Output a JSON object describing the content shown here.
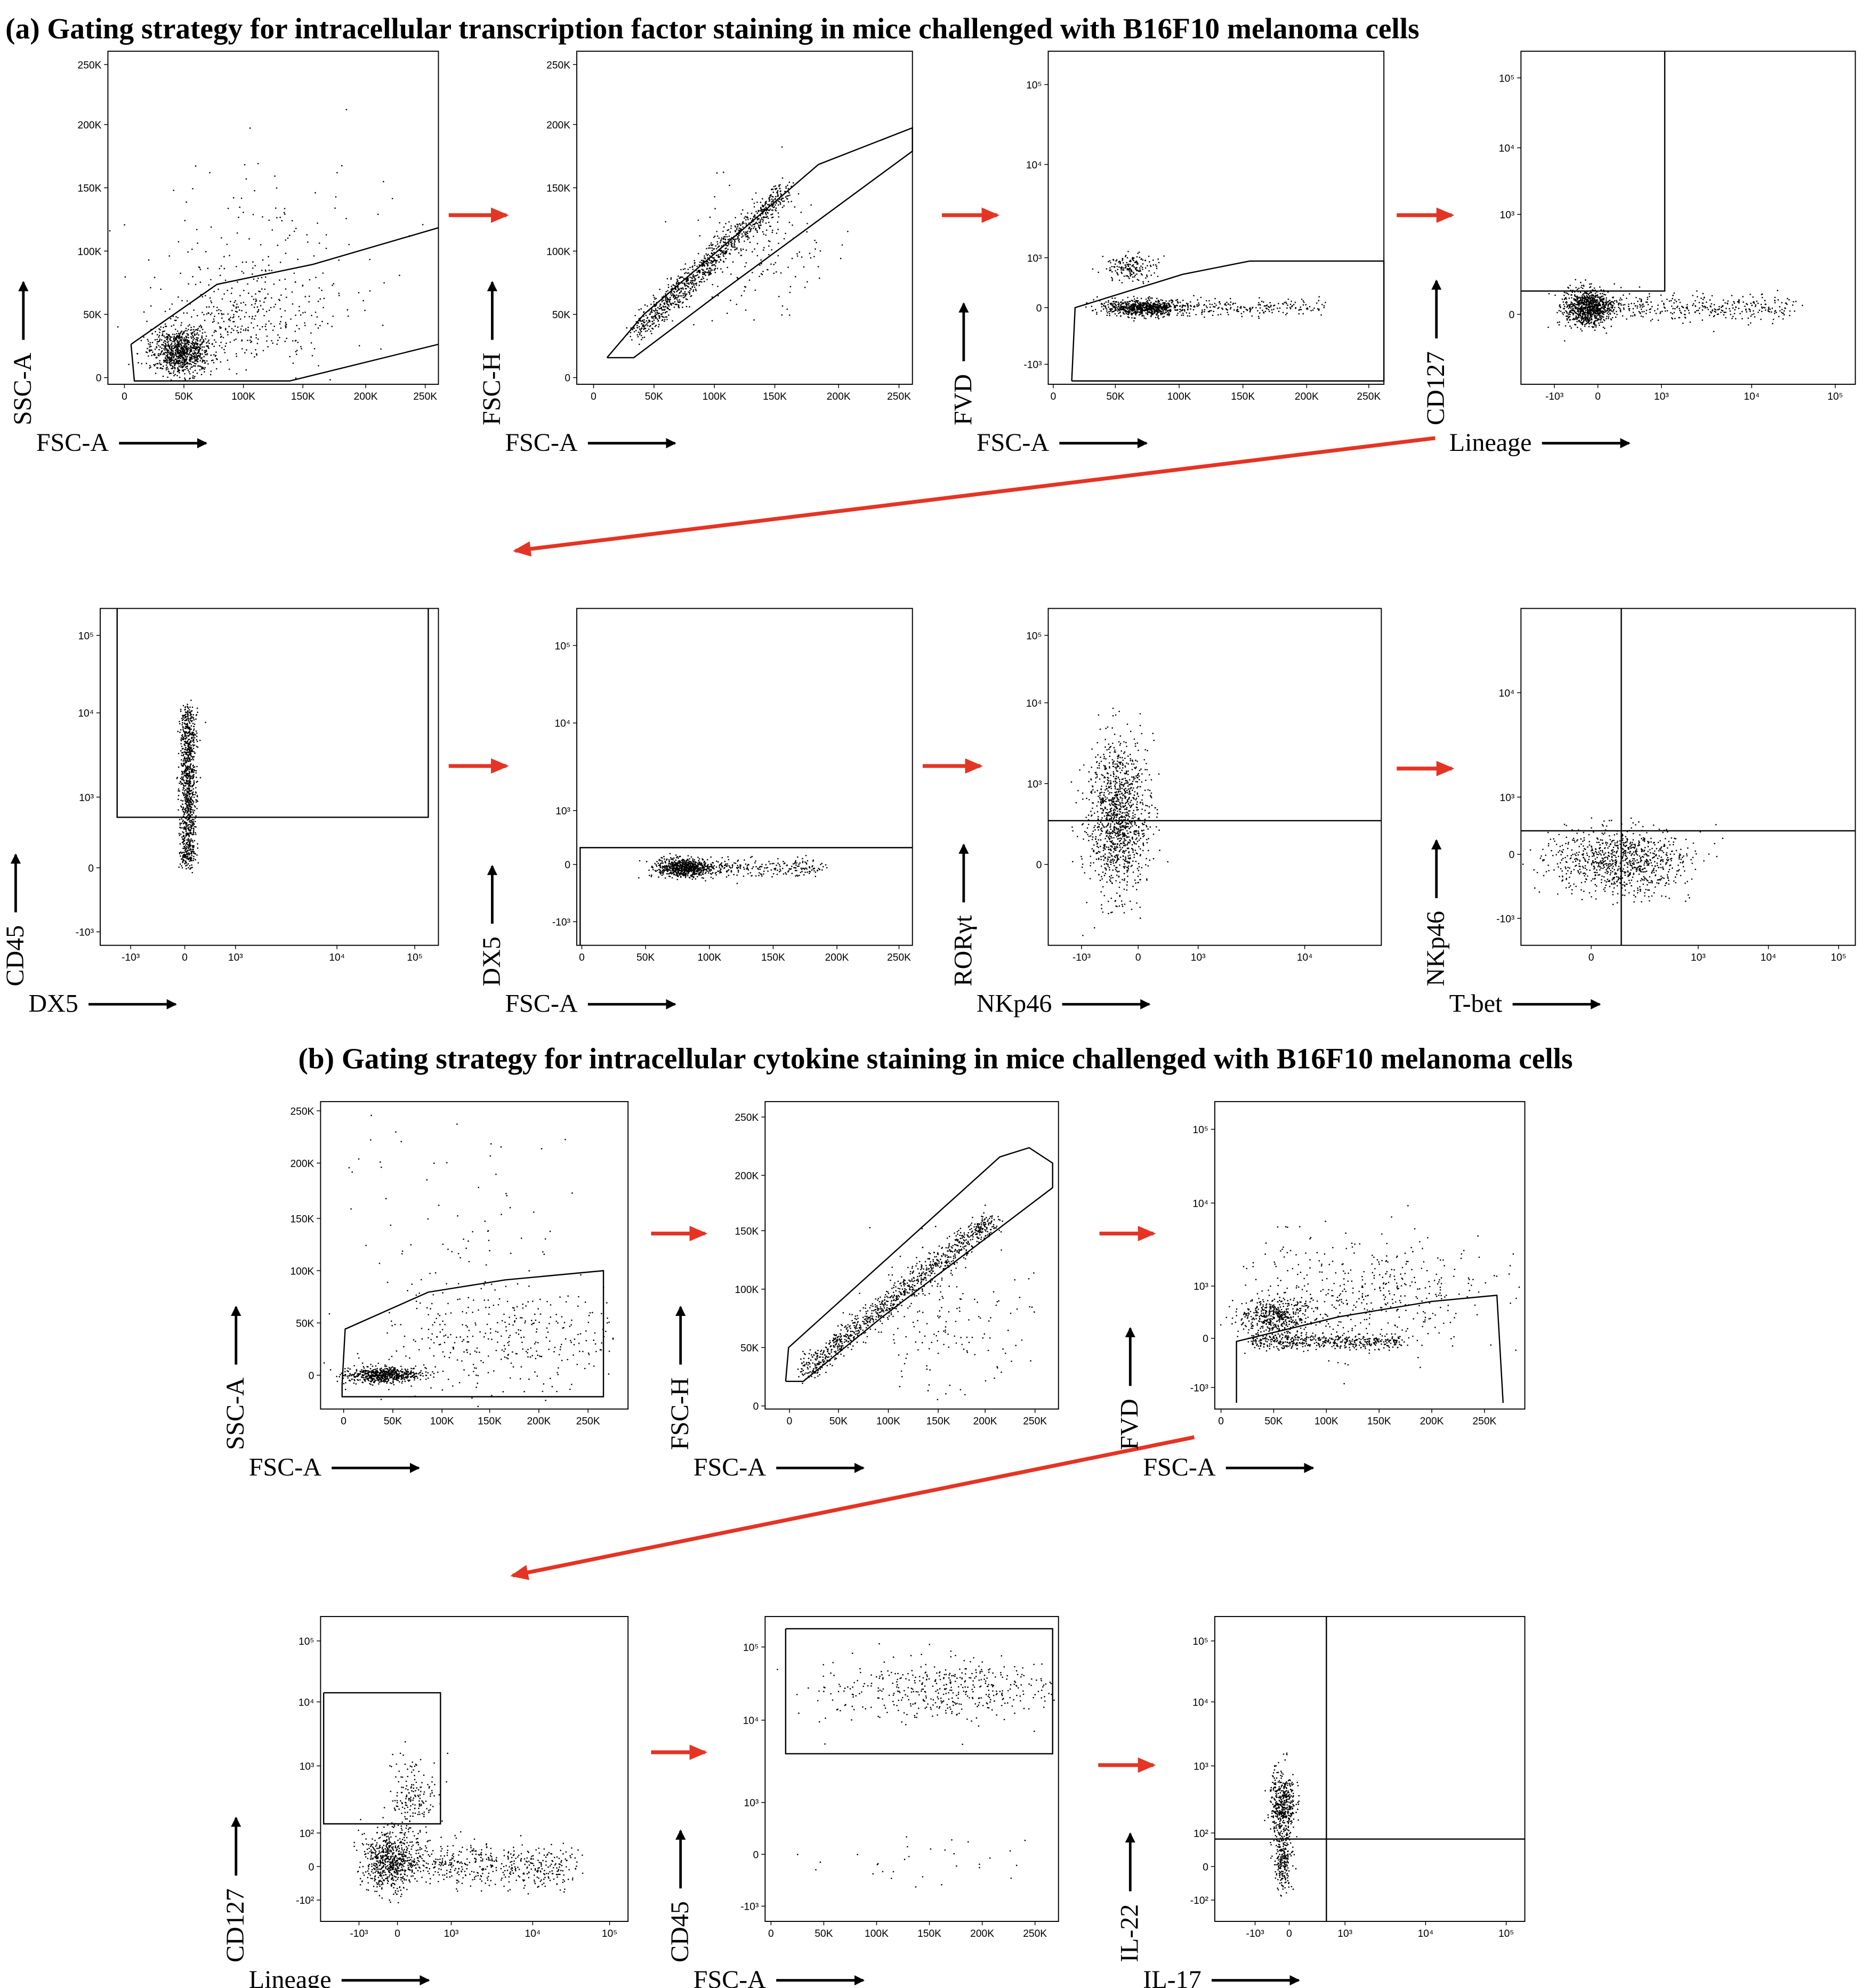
{
  "figure": {
    "sections": [
      {
        "title": "(a) Gating strategy for intracellular transcription factor staining in mice challenged with B16F10 melanoma cells",
        "panels": [
          {
            "x_label": "FSC-A",
            "y_label": "SSC-A",
            "x_ticks": [
              "0",
              "50K",
              "100K",
              "150K",
              "200K",
              "250K"
            ],
            "y_ticks": [
              "0",
              "50K",
              "100K",
              "150K",
              "200K",
              "250K"
            ]
          },
          {
            "x_label": "FSC-A",
            "y_label": "FSC-H",
            "x_ticks": [
              "0",
              "50K",
              "100K",
              "150K",
              "200K",
              "250K"
            ],
            "y_ticks": [
              "0",
              "50K",
              "100K",
              "150K",
              "200K",
              "250K"
            ]
          },
          {
            "x_label": "FSC-A",
            "y_label": "FVD",
            "x_ticks": [
              "0",
              "50K",
              "100K",
              "150K",
              "200K",
              "250K"
            ],
            "y_ticks": [
              "-10³",
              "0",
              "10³",
              "10⁴",
              "10⁵"
            ]
          },
          {
            "x_label": "Lineage",
            "y_label": "CD127",
            "x_ticks": [
              "-10³",
              "0",
              "10³",
              "10⁴",
              "10⁵"
            ],
            "y_ticks": [
              "0",
              "10³",
              "10⁴",
              "10⁵"
            ]
          },
          {
            "x_label": "DX5",
            "y_label": "CD45",
            "x_ticks": [
              "-10³",
              "0",
              "10³",
              "10⁴",
              "10⁵"
            ],
            "y_ticks": [
              "-10³",
              "0",
              "10³",
              "10⁴",
              "10⁵"
            ]
          },
          {
            "x_label": "FSC-A",
            "y_label": "DX5",
            "x_ticks": [
              "0",
              "50K",
              "100K",
              "150K",
              "200K",
              "250K"
            ],
            "y_ticks": [
              "-10³",
              "0",
              "10³",
              "10⁴",
              "10⁵"
            ]
          },
          {
            "x_label": "NKp46",
            "y_label": "RORγt",
            "x_ticks": [
              "-10³",
              "0",
              "10³",
              "10⁴"
            ],
            "y_ticks": [
              "0",
              "10³",
              "10⁴",
              "10⁵"
            ]
          },
          {
            "x_label": "T-bet",
            "y_label": "NKp46",
            "x_ticks": [
              "0",
              "10³",
              "10⁴",
              "10⁵"
            ],
            "y_ticks": [
              "-10³",
              "0",
              "10³",
              "10⁴"
            ]
          }
        ]
      },
      {
        "title": "(b) Gating strategy for intracellular cytokine staining in mice challenged with B16F10 melanoma cells",
        "panels": [
          {
            "x_label": "FSC-A",
            "y_label": "SSC-A",
            "x_ticks": [
              "0",
              "50K",
              "100K",
              "150K",
              "200K",
              "250K"
            ],
            "y_ticks": [
              "0",
              "50K",
              "100K",
              "150K",
              "200K",
              "250K"
            ]
          },
          {
            "x_label": "FSC-A",
            "y_label": "FSC-H",
            "x_ticks": [
              "0",
              "50K",
              "100K",
              "150K",
              "200K",
              "250K"
            ],
            "y_ticks": [
              "0",
              "50K",
              "100K",
              "150K",
              "200K",
              "250K"
            ]
          },
          {
            "x_label": "FSC-A",
            "y_label": "FVD",
            "x_ticks": [
              "0",
              "50K",
              "100K",
              "150K",
              "200K",
              "250K"
            ],
            "y_ticks": [
              "-10³",
              "0",
              "10³",
              "10⁴",
              "10⁵"
            ]
          },
          {
            "x_label": "Lineage",
            "y_label": "CD127",
            "x_ticks": [
              "-10³",
              "0",
              "10³",
              "10⁴",
              "10⁵"
            ],
            "y_ticks": [
              "-10²",
              "0",
              "10²",
              "10³",
              "10⁴",
              "10⁵"
            ]
          },
          {
            "x_label": "FSC-A",
            "y_label": "CD45",
            "x_ticks": [
              "0",
              "50K",
              "100K",
              "150K",
              "200K",
              "250K"
            ],
            "y_ticks": [
              "-10³",
              "0",
              "10³",
              "10⁴",
              "10⁵"
            ]
          },
          {
            "x_label": "IL-17",
            "y_label": "IL-22",
            "x_ticks": [
              "-10³",
              "0",
              "10³",
              "10⁴",
              "10⁵"
            ],
            "y_ticks": [
              "-10²",
              "0",
              "10²",
              "10³",
              "10⁴",
              "10⁵"
            ]
          }
        ]
      }
    ]
  }
}
